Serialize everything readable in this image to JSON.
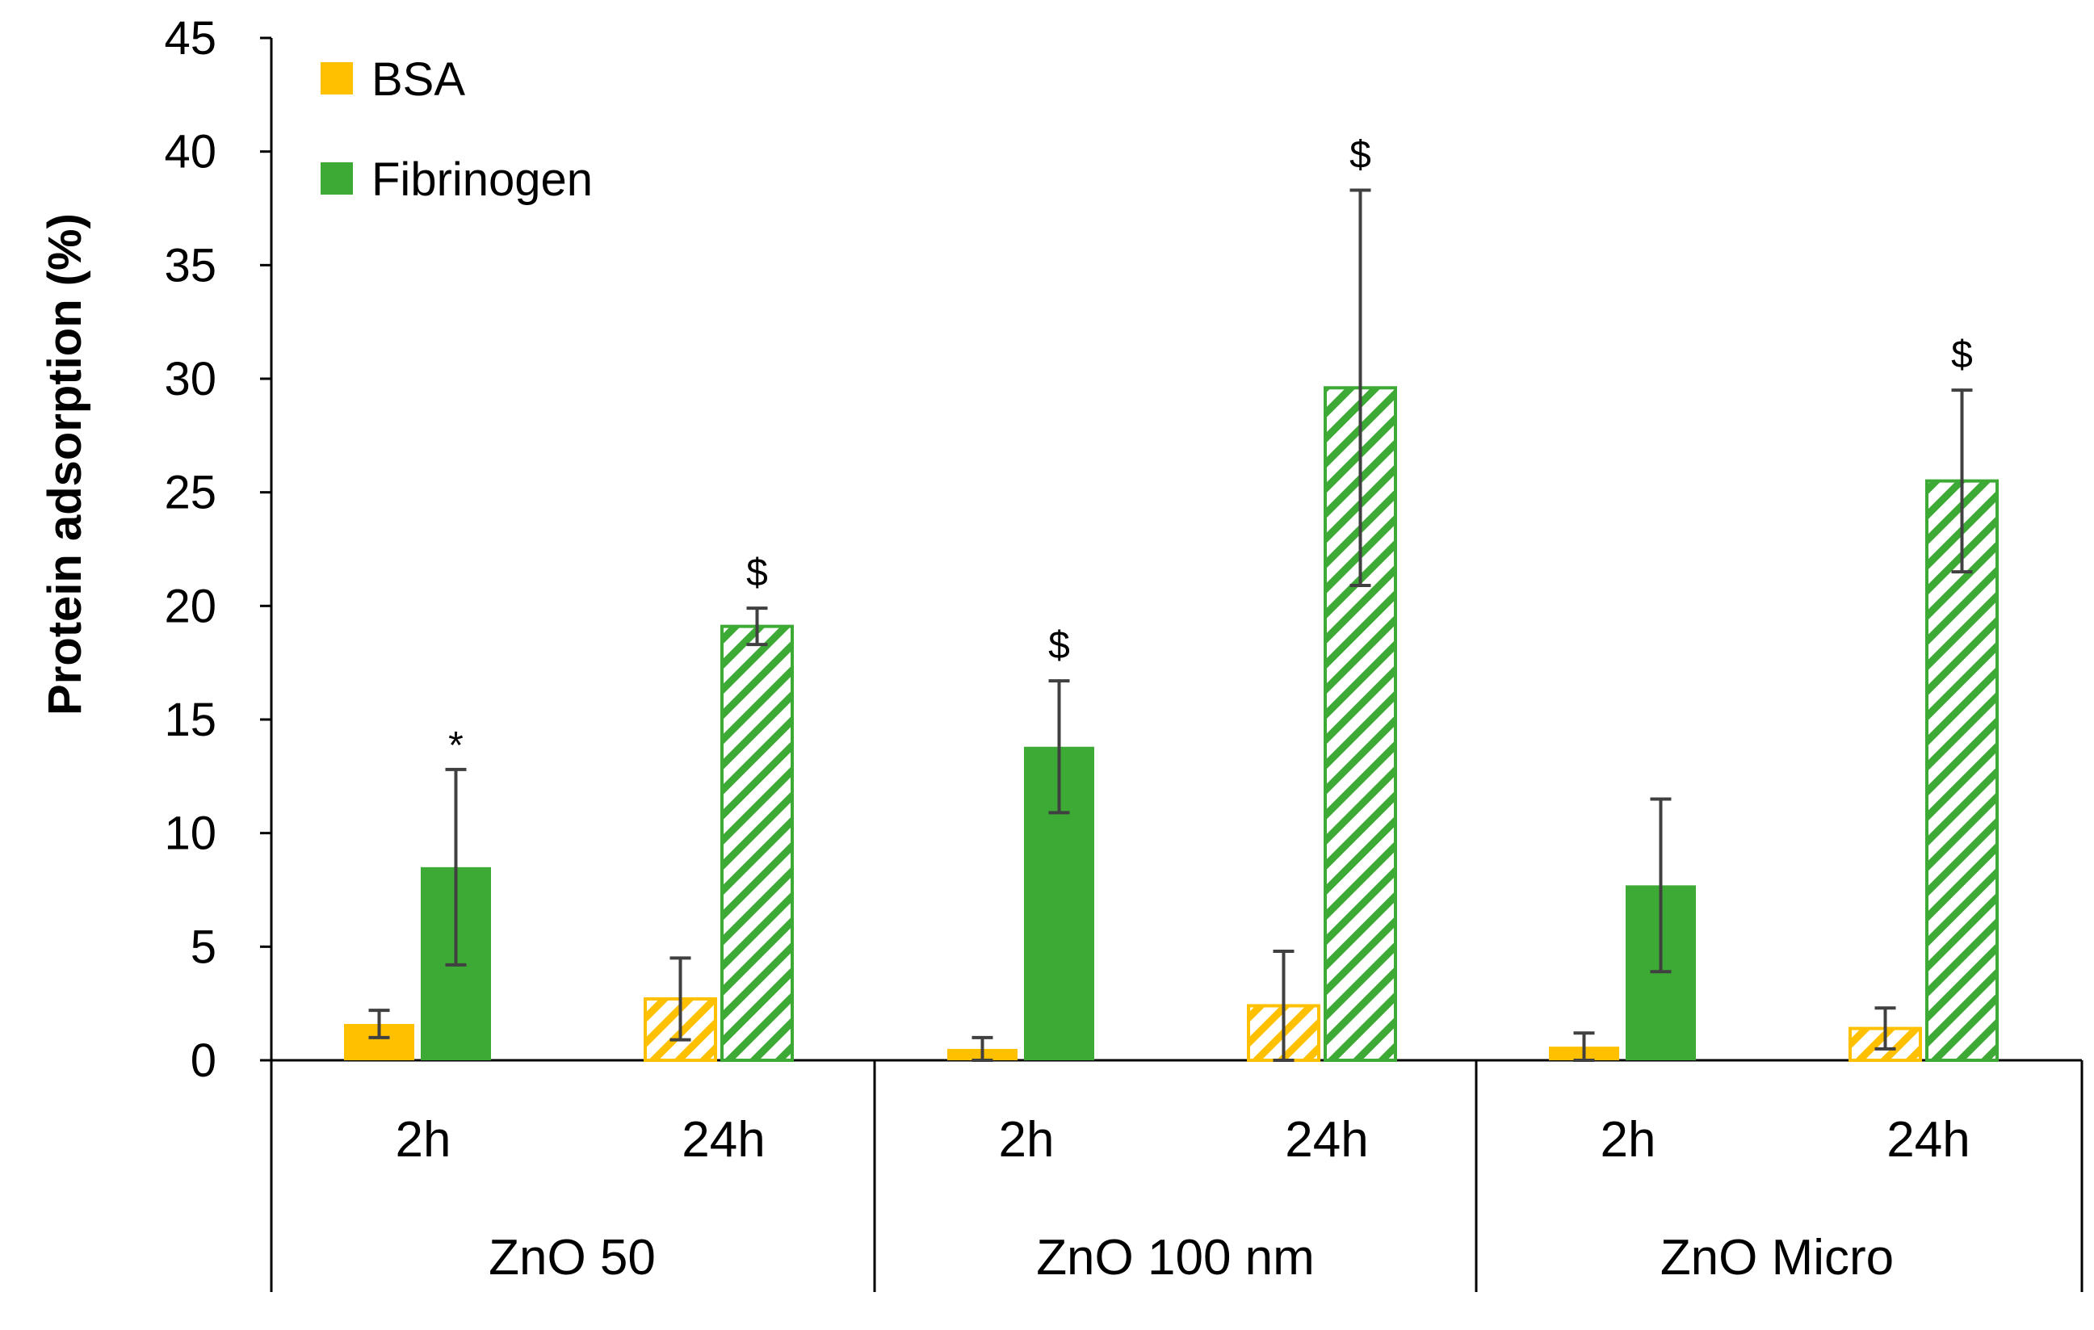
{
  "chart_data": {
    "type": "bar",
    "title": "",
    "ylabel": "Protein adsorption (%)",
    "xlabel": "",
    "ylim": [
      0,
      45
    ],
    "yticks": [
      0,
      5,
      10,
      15,
      20,
      25,
      30,
      35,
      40,
      45
    ],
    "groups": [
      "ZnO 50",
      "ZnO 100 nm",
      "ZnO Micro"
    ],
    "timepoints": [
      "2h",
      "24h"
    ],
    "series": [
      {
        "name": "BSA",
        "color": "#FFC000",
        "values": {
          "ZnO 50": {
            "2h": 1.6,
            "24h": 2.7
          },
          "ZnO 100 nm": {
            "2h": 0.5,
            "24h": 2.4
          },
          "ZnO Micro": {
            "2h": 0.6,
            "24h": 1.4
          }
        },
        "error": {
          "ZnO 50": {
            "2h": 0.6,
            "24h": 1.8
          },
          "ZnO 100 nm": {
            "2h": 0.5,
            "24h": 2.4
          },
          "ZnO Micro": {
            "2h": 0.6,
            "24h": 0.9
          }
        }
      },
      {
        "name": "Fibrinogen",
        "color": "#3DAA35",
        "values": {
          "ZnO 50": {
            "2h": 8.5,
            "24h": 19.1
          },
          "ZnO 100 nm": {
            "2h": 13.8,
            "24h": 29.6
          },
          "ZnO Micro": {
            "2h": 7.7,
            "24h": 25.5
          }
        },
        "error": {
          "ZnO 50": {
            "2h": 4.3,
            "24h": 0.8
          },
          "ZnO 100 nm": {
            "2h": 2.9,
            "24h": 8.7
          },
          "ZnO Micro": {
            "2h": 3.8,
            "24h": 4.0
          }
        },
        "annotations": {
          "ZnO 50": {
            "2h": "*",
            "24h": "$"
          },
          "ZnO 100 nm": {
            "2h": "$",
            "24h": "$"
          },
          "ZnO Micro": {
            "24h": "$"
          }
        }
      }
    ],
    "pattern_note": "2h bars solid fill, 24h bars diagonal hatched",
    "legend": {
      "position": "top-left",
      "entries": [
        "BSA",
        "Fibrinogen"
      ]
    }
  }
}
